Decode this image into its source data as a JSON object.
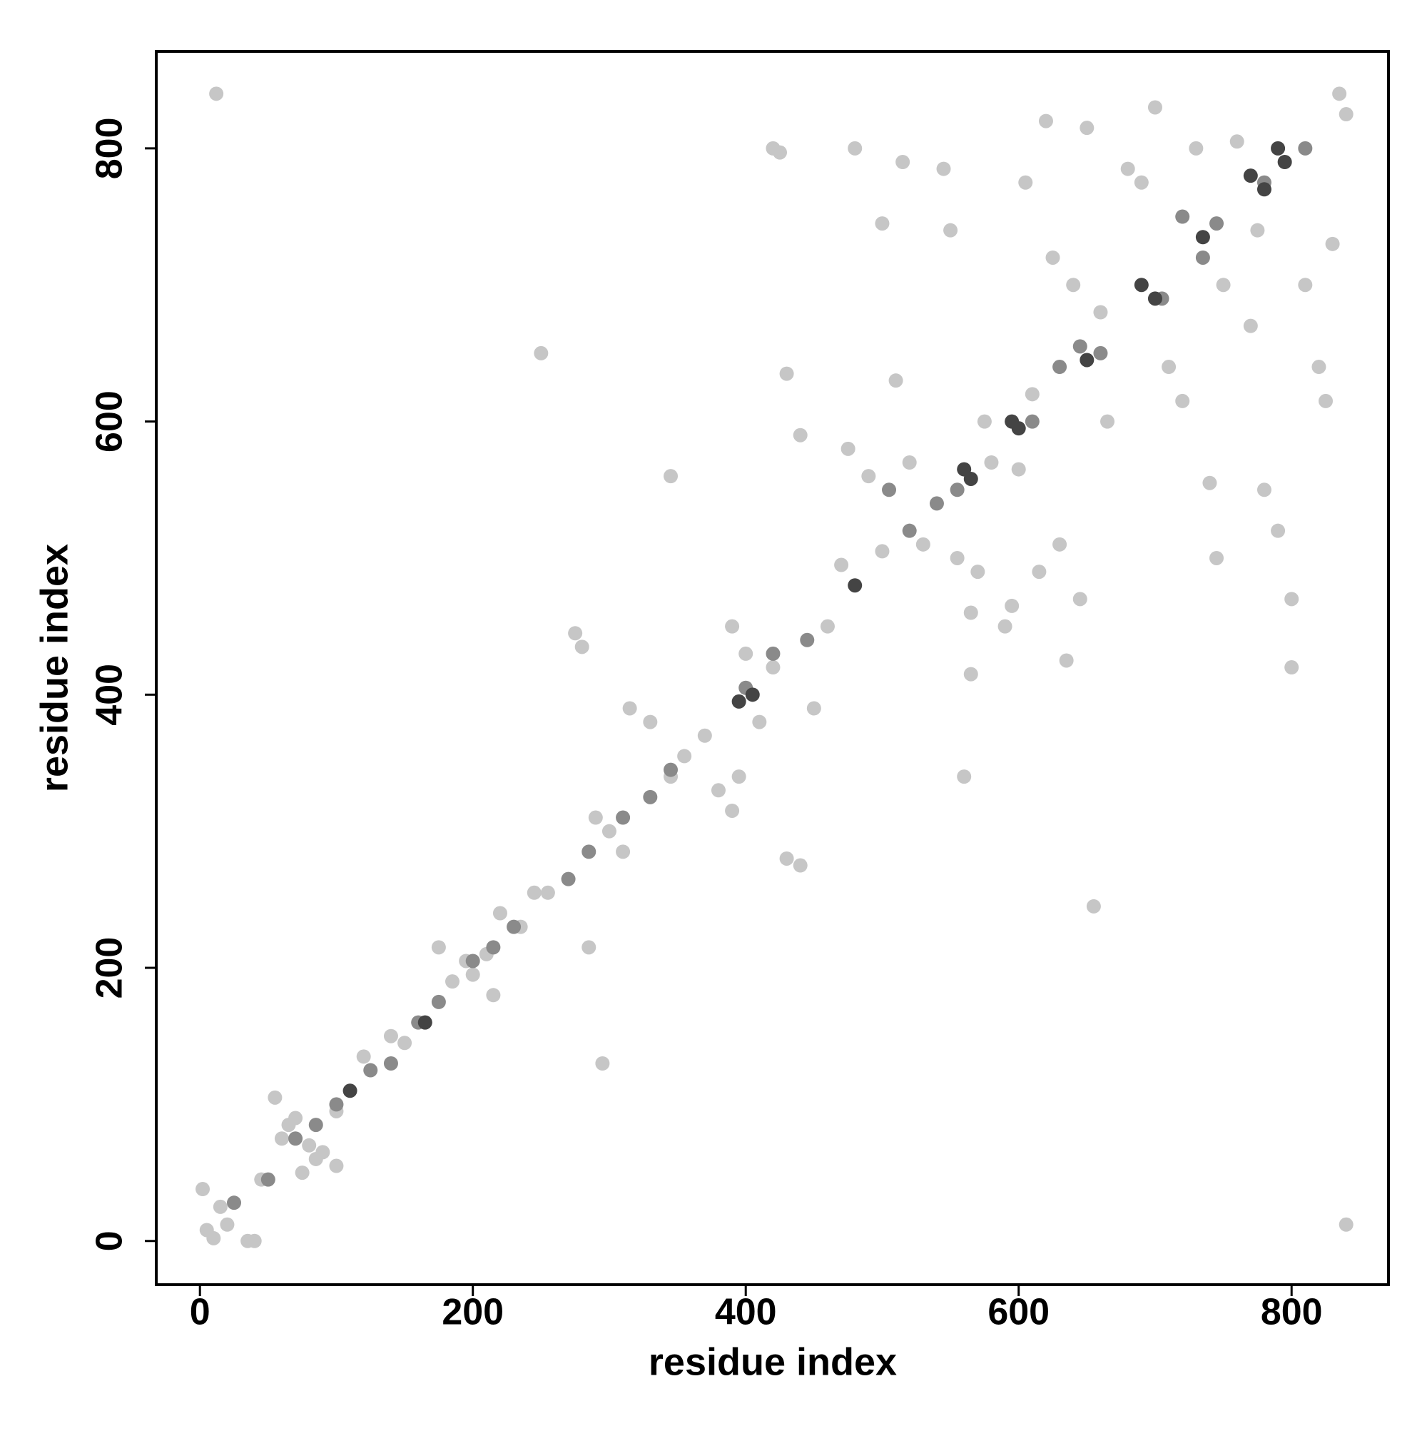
{
  "chart_data": {
    "type": "scatter",
    "xlabel": "residue index",
    "ylabel": "residue index",
    "xlim": [
      -32,
      871
    ],
    "ylim": [
      -32,
      871
    ],
    "xticks": [
      0,
      200,
      400,
      600,
      800
    ],
    "yticks": [
      0,
      200,
      400,
      600,
      800
    ],
    "series": [
      {
        "color": "#c6c6c6",
        "x": [
          2,
          5,
          10,
          15,
          20,
          35,
          40,
          45,
          55,
          60,
          65,
          70,
          75,
          80,
          85,
          90,
          100,
          100,
          120,
          140,
          150,
          165,
          175,
          185,
          195,
          200,
          210,
          215,
          220,
          235,
          245,
          255,
          275,
          280,
          285,
          290,
          295,
          300,
          310,
          315,
          330,
          345,
          355,
          370,
          380,
          390,
          395,
          390,
          400,
          410,
          420,
          430,
          440,
          450,
          460,
          420,
          425,
          430,
          440,
          470,
          475,
          480,
          490,
          500,
          500,
          510,
          515,
          520,
          530,
          545,
          550,
          555,
          560,
          565,
          565,
          570,
          575,
          580,
          590,
          595,
          600,
          605,
          610,
          615,
          620,
          625,
          630,
          635,
          640,
          645,
          650,
          655,
          660,
          665,
          680,
          690,
          700,
          710,
          720,
          730,
          740,
          745,
          750,
          760,
          770,
          775,
          780,
          790,
          800,
          800,
          810,
          820,
          825,
          830,
          835,
          840,
          840,
          12,
          250,
          345
        ],
        "y": [
          38,
          8,
          2,
          25,
          12,
          0,
          0,
          45,
          105,
          75,
          85,
          90,
          50,
          70,
          60,
          65,
          55,
          95,
          135,
          150,
          145,
          160,
          215,
          190,
          205,
          195,
          210,
          180,
          240,
          230,
          255,
          255,
          445,
          435,
          215,
          310,
          130,
          300,
          285,
          390,
          380,
          340,
          355,
          370,
          330,
          315,
          340,
          450,
          430,
          380,
          420,
          280,
          275,
          390,
          450,
          800,
          797,
          635,
          590,
          495,
          580,
          800,
          560,
          505,
          745,
          630,
          790,
          570,
          510,
          785,
          740,
          500,
          340,
          415,
          460,
          490,
          600,
          570,
          450,
          465,
          565,
          775,
          620,
          490,
          820,
          720,
          510,
          425,
          700,
          470,
          815,
          245,
          680,
          600,
          785,
          775,
          830,
          640,
          615,
          800,
          555,
          500,
          700,
          805,
          670,
          740,
          550,
          520,
          470,
          420,
          700,
          640,
          615,
          730,
          840,
          825,
          12,
          840,
          650,
          560
        ]
      },
      {
        "color": "#8a8a8a",
        "x": [
          25,
          50,
          70,
          85,
          100,
          125,
          140,
          160,
          175,
          200,
          215,
          230,
          270,
          285,
          310,
          330,
          345,
          400,
          420,
          445,
          505,
          520,
          540,
          555,
          610,
          630,
          645,
          660,
          705,
          720,
          735,
          745,
          780,
          810
        ],
        "y": [
          28,
          45,
          75,
          85,
          100,
          125,
          130,
          160,
          175,
          205,
          215,
          230,
          265,
          285,
          310,
          325,
          345,
          405,
          430,
          440,
          550,
          520,
          540,
          550,
          600,
          640,
          655,
          650,
          690,
          750,
          720,
          745,
          775,
          800
        ]
      },
      {
        "color": "#444444",
        "x": [
          110,
          165,
          395,
          405,
          480,
          560,
          565,
          595,
          600,
          650,
          690,
          700,
          735,
          770,
          790,
          795,
          780
        ],
        "y": [
          110,
          160,
          395,
          400,
          480,
          565,
          558,
          600,
          595,
          645,
          700,
          690,
          735,
          780,
          800,
          790,
          770
        ]
      }
    ]
  }
}
